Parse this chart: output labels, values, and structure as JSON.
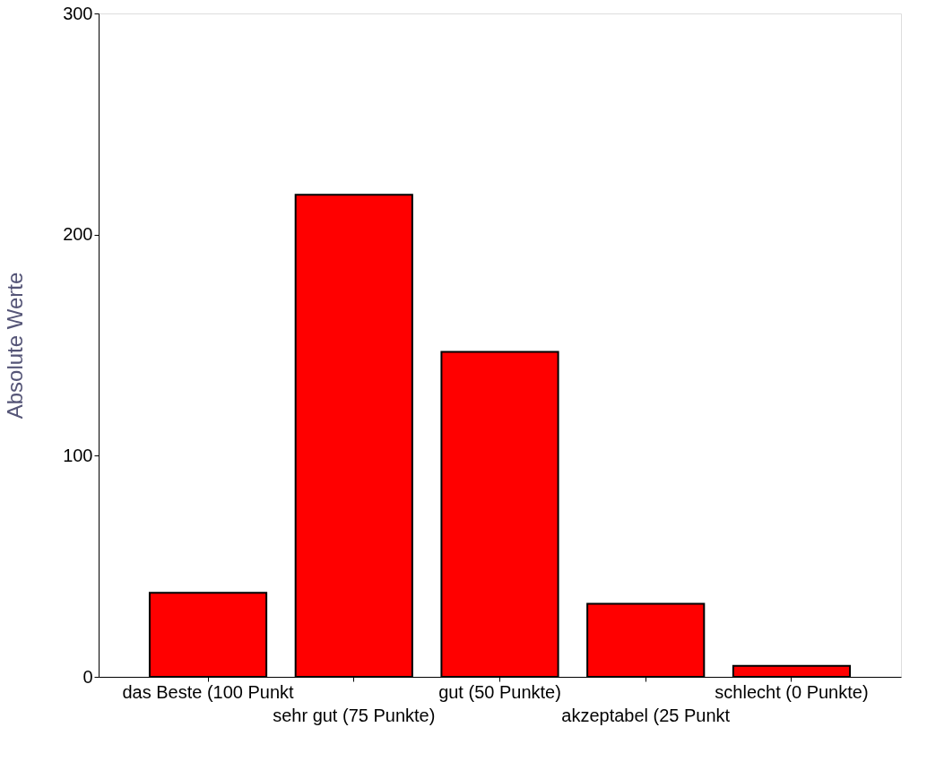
{
  "chart_data": {
    "type": "bar",
    "ylabel": "Absolute Werte",
    "categories": [
      "das Beste (100 Punkt",
      "sehr gut (75 Punkte)",
      "gut (50 Punkte)",
      "akzeptabel (25 Punkt",
      "schlecht (0 Punkte)"
    ],
    "values": [
      38,
      218,
      147,
      33,
      5
    ],
    "color": "#ff0000",
    "ylim": [
      0,
      300
    ],
    "yticks": [
      0,
      100,
      200,
      300
    ],
    "grid": false
  }
}
